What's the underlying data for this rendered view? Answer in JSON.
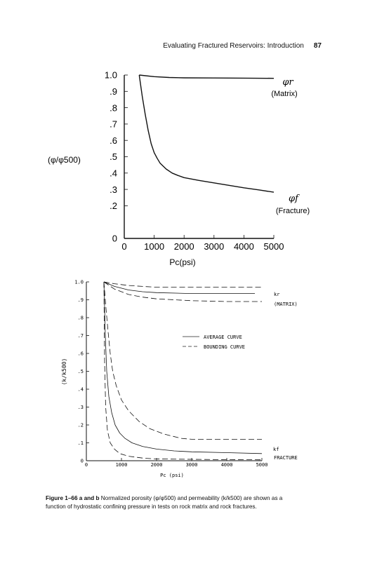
{
  "header": {
    "running_title": "Evaluating Fractured Reservoirs: Introduction",
    "page_number": "87"
  },
  "chart_data": [
    {
      "type": "line",
      "ylabel": "(φ/φ500)",
      "xlabel": "Pc(psi)",
      "xlim": [
        0,
        5000
      ],
      "ylim": [
        0,
        1.0
      ],
      "x_ticks": [
        "0",
        "1000",
        "2000",
        "3000",
        "4000",
        "5000"
      ],
      "y_ticks": [
        "0",
        ".2",
        ".3",
        ".4",
        ".5",
        ".6",
        ".7",
        ".8",
        ".9",
        "1.0"
      ],
      "series": [
        {
          "name": "φr (Matrix)",
          "label_symbol": "φr",
          "label_text": "(Matrix)",
          "x": [
            500,
            1000,
            1500,
            2000,
            3000,
            4000,
            5000
          ],
          "y": [
            1.0,
            0.99,
            0.985,
            0.983,
            0.982,
            0.981,
            0.98
          ]
        },
        {
          "name": "φf (Fracture)",
          "label_symbol": "φf",
          "label_text": "(Fracture)",
          "x": [
            500,
            600,
            700,
            800,
            900,
            1000,
            1100,
            1200,
            1400,
            1600,
            1800,
            2000,
            2500,
            3000,
            3500,
            4000,
            4500,
            5000
          ],
          "y": [
            1.0,
            0.87,
            0.76,
            0.66,
            0.58,
            0.525,
            0.49,
            0.46,
            0.425,
            0.4,
            0.385,
            0.372,
            0.355,
            0.34,
            0.325,
            0.31,
            0.297,
            0.283
          ]
        }
      ]
    },
    {
      "type": "line",
      "ylabel": "(k/k500)",
      "xlabel": "Pc (psi)",
      "xlim": [
        0,
        5000
      ],
      "ylim": [
        0,
        1.0
      ],
      "x_ticks": [
        "0",
        "1000",
        "2000",
        "3000",
        "4000",
        "5000"
      ],
      "y_ticks": [
        "0",
        ".1",
        ".2",
        ".3",
        ".4",
        ".5",
        ".6",
        ".7",
        ".8",
        ".9",
        "1.0"
      ],
      "legend": {
        "solid": "AVERAGE CURVE",
        "dashed": "BOUNDING CURVE"
      },
      "annotations": [
        {
          "symbol": "kr",
          "text": "(MATRIX)"
        },
        {
          "symbol": "kf",
          "text": "FRACTURE"
        }
      ],
      "series": [
        {
          "name": "kr average",
          "style": "solid",
          "x": [
            500,
            800,
            1200,
            1600,
            2000,
            3000,
            4000,
            4800
          ],
          "y": [
            1.0,
            0.975,
            0.955,
            0.945,
            0.94,
            0.935,
            0.935,
            0.935
          ]
        },
        {
          "name": "kr upper bound",
          "style": "dashed",
          "x": [
            500,
            800,
            1200,
            1600,
            2000,
            3000,
            4000,
            5000
          ],
          "y": [
            1.0,
            0.99,
            0.98,
            0.975,
            0.97,
            0.97,
            0.97,
            0.97
          ]
        },
        {
          "name": "kr lower bound",
          "style": "dashed",
          "x": [
            500,
            800,
            1200,
            1600,
            2000,
            3000,
            4000,
            5000
          ],
          "y": [
            1.0,
            0.96,
            0.93,
            0.915,
            0.905,
            0.895,
            0.89,
            0.89
          ]
        },
        {
          "name": "kf upper bound",
          "style": "dashed",
          "x": [
            500,
            560,
            620,
            680,
            750,
            850,
            1000,
            1200,
            1500,
            1800,
            2200,
            2700,
            3000,
            4000,
            5000
          ],
          "y": [
            1.0,
            0.85,
            0.72,
            0.6,
            0.5,
            0.42,
            0.34,
            0.28,
            0.22,
            0.18,
            0.15,
            0.125,
            0.12,
            0.12,
            0.12
          ]
        },
        {
          "name": "kf average",
          "style": "solid",
          "x": [
            500,
            540,
            580,
            640,
            720,
            820,
            950,
            1100,
            1300,
            1600,
            2000,
            2500,
            3000,
            4000,
            5000
          ],
          "y": [
            1.0,
            0.7,
            0.5,
            0.36,
            0.27,
            0.2,
            0.155,
            0.125,
            0.1,
            0.08,
            0.065,
            0.055,
            0.05,
            0.045,
            0.04
          ]
        },
        {
          "name": "kf lower bound",
          "style": "dashed",
          "x": [
            500,
            520,
            550,
            600,
            680,
            800,
            950,
            1200,
            1600,
            2000,
            3000,
            4000,
            5000
          ],
          "y": [
            1.0,
            0.55,
            0.3,
            0.17,
            0.1,
            0.065,
            0.04,
            0.025,
            0.015,
            0.01,
            0.008,
            0.006,
            0.005
          ]
        }
      ]
    }
  ],
  "caption": {
    "label": "Figure 1–66 a and b",
    "text_line1": "Normalized porosity (φ/φ500) and permeability (k/k500) are shown as a",
    "text_line2": "function of hydrostatic confining pressure in tests on rock matrix and rock fractures."
  }
}
